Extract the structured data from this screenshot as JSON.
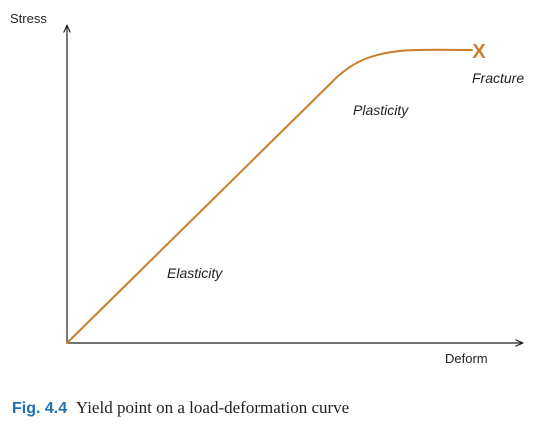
{
  "figure": {
    "y_axis_label": "Stress",
    "x_axis_label": "Deform",
    "regions": {
      "elasticity": "Elasticity",
      "plasticity": "Plasticity",
      "fracture": "Fracture"
    },
    "fracture_marker": "X"
  },
  "caption": {
    "label": "Fig. 4.4",
    "text": "Yield point on a load-deformation curve"
  },
  "colors": {
    "curve": "#c97d2e",
    "axis": "#231f20",
    "caption_label": "#1f6fb5"
  }
}
